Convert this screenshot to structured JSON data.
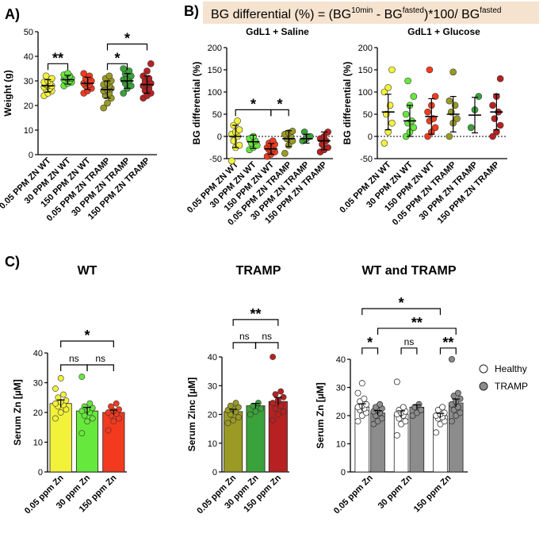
{
  "panel_labels": {
    "a": "A)",
    "b": "B)",
    "c": "C)"
  },
  "formula": {
    "prefix": "BG differential (%) = (BG",
    "sup1": "10min",
    "mid": " - BG",
    "sup2": "fasted",
    "mid2": ")*100/ BG",
    "sup3": "fasted"
  },
  "colors": {
    "yellow": "#f2f23a",
    "lime": "#66e83c",
    "red": "#f43a1e",
    "olive": "#9a9a25",
    "green": "#3aa23a",
    "darkred": "#b82121",
    "healthy": "#ffffff",
    "tramp": "#8c8c8c",
    "formula_bg": "#f5e3cf"
  },
  "chart_data": [
    {
      "id": "A",
      "type": "scatter",
      "title": "",
      "xlabel": "",
      "ylabel": "Weight (g)",
      "ylim": [
        0,
        50
      ],
      "yticks": [
        0,
        10,
        20,
        30,
        40,
        50
      ],
      "categories": [
        "0.05 PPM ZN WT",
        "30 PPM ZN WT",
        "150 PPM ZN WT",
        "0.05 PPM ZN TRAMP",
        "30 PPM ZN TRAMP",
        "150 PPM ZN TRAMP"
      ],
      "colors": [
        "yellow",
        "lime",
        "red",
        "olive",
        "green",
        "darkred"
      ],
      "means": [
        28,
        30.5,
        29,
        26.5,
        30,
        28.5
      ],
      "sd": [
        2.5,
        1.8,
        2.5,
        3.5,
        3,
        3.5
      ],
      "points": [
        [
          24,
          25,
          26,
          26.5,
          27,
          27.5,
          28,
          28,
          28.5,
          29,
          29.5,
          30,
          31,
          32
        ],
        [
          28,
          29,
          29.5,
          30,
          30,
          30.5,
          31,
          31,
          31.5,
          32,
          32.5,
          33
        ],
        [
          25,
          26,
          27,
          28,
          28.5,
          29,
          29.5,
          30,
          31,
          32,
          33
        ],
        [
          19,
          21,
          23,
          24,
          25,
          26,
          26.5,
          27,
          27.5,
          28,
          28.5,
          29,
          30,
          31,
          32
        ],
        [
          25,
          27,
          28,
          29,
          30,
          30.5,
          31,
          32,
          33,
          34,
          35
        ],
        [
          23,
          24,
          25,
          26,
          27,
          28,
          28.5,
          29,
          30,
          31,
          32,
          34,
          37
        ]
      ],
      "significance": [
        {
          "from": 0,
          "to": 1,
          "label": "**",
          "y": 37
        },
        {
          "from": 3,
          "to": 4,
          "label": "*",
          "y": 37
        },
        {
          "from": 3,
          "to": 5,
          "label": "*",
          "y": 45
        }
      ]
    },
    {
      "id": "B1",
      "type": "scatter",
      "title": "GdL1 + Saline",
      "xlabel": "",
      "ylabel": "BG differential (%)",
      "ylim": [
        -50,
        200
      ],
      "yticks": [
        -50,
        0,
        50,
        100,
        150,
        200
      ],
      "zero_line": true,
      "categories": [
        "0.05 PPM ZN WT",
        "30 PPM ZN WT",
        "150 PPM ZN WT",
        "0.05 PPM ZN TRAMP",
        "30 PPM ZN TRAMP",
        "150 PPM ZN TRAMP"
      ],
      "colors": [
        "yellow",
        "lime",
        "red",
        "olive",
        "green",
        "darkred"
      ],
      "means": [
        0,
        -12,
        -28,
        -5,
        -5,
        -10
      ],
      "sd": [
        25,
        15,
        12,
        18,
        10,
        20
      ],
      "points": [
        [
          -55,
          -25,
          -20,
          -10,
          0,
          5,
          10,
          15,
          25,
          35
        ],
        [
          -30,
          -25,
          -20,
          -15,
          -10,
          -5,
          0
        ],
        [
          -45,
          -40,
          -35,
          -30,
          -28,
          -25,
          -22,
          -18,
          -15,
          -10
        ],
        [
          -38,
          -20,
          -10,
          -5,
          0,
          5,
          8,
          12
        ],
        [
          -10,
          -5,
          0,
          10
        ],
        [
          -35,
          -30,
          -25,
          -18,
          -10,
          -5,
          0,
          10
        ]
      ],
      "significance": [
        {
          "from": 0,
          "to": 2,
          "label": "*",
          "y": 60
        },
        {
          "from": 2,
          "to": 3,
          "label": "*",
          "y": 60
        }
      ]
    },
    {
      "id": "B2",
      "type": "scatter",
      "title": "GdL1 + Glucose",
      "xlabel": "",
      "ylabel": "BG differential (%)",
      "ylim": [
        -50,
        200
      ],
      "yticks": [
        -50,
        0,
        50,
        100,
        150,
        200
      ],
      "zero_line": true,
      "categories": [
        "0.05 PPM ZN WT",
        "30 PPM ZN WT",
        "150 PPM ZN WT",
        "0.05 PPM ZN TRAMP",
        "30 PPM ZN TRAMP",
        "150 PPM ZN TRAMP"
      ],
      "colors": [
        "yellow",
        "lime",
        "red",
        "olive",
        "green",
        "darkred"
      ],
      "means": [
        55,
        35,
        45,
        50,
        48,
        55
      ],
      "sd": [
        40,
        35,
        40,
        40,
        40,
        40
      ],
      "points": [
        [
          -15,
          10,
          30,
          50,
          70,
          100,
          110,
          150
        ],
        [
          0,
          10,
          20,
          30,
          35,
          50,
          70,
          90,
          125
        ],
        [
          0,
          10,
          20,
          35,
          40,
          55,
          70,
          90,
          150
        ],
        [
          0,
          30,
          40,
          55,
          70,
          80,
          145
        ],
        [
          20,
          60,
          90
        ],
        [
          0,
          10,
          25,
          40,
          55,
          70,
          90,
          130
        ]
      ],
      "significance": []
    },
    {
      "id": "C1",
      "type": "bar",
      "title": "WT",
      "xlabel": "",
      "ylabel": "Serum Zn [µM]",
      "ylim": [
        0,
        40
      ],
      "yticks": [
        0,
        10,
        20,
        30,
        40
      ],
      "categories": [
        "0.05 ppm Zn",
        "30 ppm Zn",
        "150 ppm Zn"
      ],
      "colors": [
        "yellow",
        "lime",
        "red"
      ],
      "values": [
        23,
        20.5,
        20
      ],
      "sem": [
        1.2,
        1.2,
        0.8
      ],
      "points": [
        [
          18,
          20,
          21,
          22,
          22.5,
          23,
          23.5,
          24,
          25,
          26,
          28,
          31.5
        ],
        [
          13,
          17,
          18,
          19,
          20,
          20.5,
          21,
          21.5,
          22,
          23,
          32
        ],
        [
          14,
          17,
          18,
          19,
          19.5,
          20,
          20.5,
          21,
          22,
          23
        ]
      ],
      "significance": [
        {
          "from": 0,
          "to": 1,
          "label": "ns",
          "y": 36
        },
        {
          "from": 1,
          "to": 2,
          "label": "ns",
          "y": 36
        },
        {
          "from": 0,
          "to": 2,
          "label": "*",
          "y": 44
        }
      ]
    },
    {
      "id": "C2",
      "type": "bar",
      "title": "TRAMP",
      "xlabel": "",
      "ylabel": "Serum Zinc [µM]",
      "ylim": [
        0,
        40
      ],
      "yticks": [
        0,
        10,
        20,
        30,
        40
      ],
      "categories": [
        "0.05 ppm Zn",
        "30 ppm Zn",
        "150 ppm Zn"
      ],
      "colors": [
        "olive",
        "green",
        "darkred"
      ],
      "values": [
        21,
        23,
        24.5
      ],
      "sem": [
        0.8,
        0.8,
        1.4
      ],
      "points": [
        [
          17,
          18,
          19,
          20,
          21,
          21.5,
          22,
          22.5,
          23,
          24
        ],
        [
          20,
          21,
          22,
          23,
          24
        ],
        [
          18,
          20,
          21,
          22,
          23,
          24,
          25,
          26,
          27,
          28,
          40
        ]
      ],
      "significance": [
        {
          "from": 0,
          "to": 1,
          "label": "ns",
          "y": 45
        },
        {
          "from": 1,
          "to": 2,
          "label": "ns",
          "y": 45
        },
        {
          "from": 0,
          "to": 2,
          "label": "**",
          "y": 53
        }
      ]
    },
    {
      "id": "C3",
      "type": "bar",
      "title": "WT and TRAMP",
      "xlabel": "",
      "ylabel": "Serum Zn [µM]",
      "ylim": [
        0,
        40
      ],
      "yticks": [
        0,
        10,
        20,
        30,
        40
      ],
      "categories": [
        "0.05 ppm Zn",
        "30 ppm Zn",
        "150 ppm Zn"
      ],
      "legend": {
        "position": "right",
        "entries": [
          "Healthy",
          "TRAMP"
        ]
      },
      "series": [
        {
          "name": "Healthy",
          "values": [
            23,
            20.5,
            20
          ],
          "sem": [
            1.2,
            1.2,
            0.8
          ],
          "points": [
            [
              18,
              20,
              21,
              22,
              22.5,
              23,
              23.5,
              24,
              25,
              26,
              28,
              31.5
            ],
            [
              13,
              17,
              18,
              19,
              20,
              20.5,
              21,
              21.5,
              22,
              23,
              32
            ],
            [
              14,
              17,
              18,
              19,
              19.5,
              20,
              20.5,
              21,
              22,
              23
            ]
          ]
        },
        {
          "name": "TRAMP",
          "values": [
            21,
            23,
            24.5
          ],
          "sem": [
            0.8,
            0.8,
            1.4
          ],
          "points": [
            [
              17,
              18,
              19,
              20,
              21,
              21.5,
              22,
              22.5,
              23,
              24
            ],
            [
              20,
              21,
              22,
              23,
              24
            ],
            [
              18,
              20,
              21,
              22,
              23,
              24,
              25,
              26,
              27,
              28,
              40
            ]
          ]
        }
      ],
      "significance": [
        {
          "from": [
            0,
            0
          ],
          "to": [
            0,
            1
          ],
          "label": "*",
          "y": 44
        },
        {
          "from": [
            1,
            0
          ],
          "to": [
            1,
            1
          ],
          "label": "ns",
          "y": 44
        },
        {
          "from": [
            2,
            0
          ],
          "to": [
            2,
            1
          ],
          "label": "**",
          "y": 44
        },
        {
          "from": [
            0,
            1
          ],
          "to": [
            2,
            1
          ],
          "label": "**",
          "y": 51
        },
        {
          "from": [
            0,
            0
          ],
          "to": [
            2,
            0
          ],
          "label": "*",
          "y": 58
        }
      ]
    }
  ]
}
